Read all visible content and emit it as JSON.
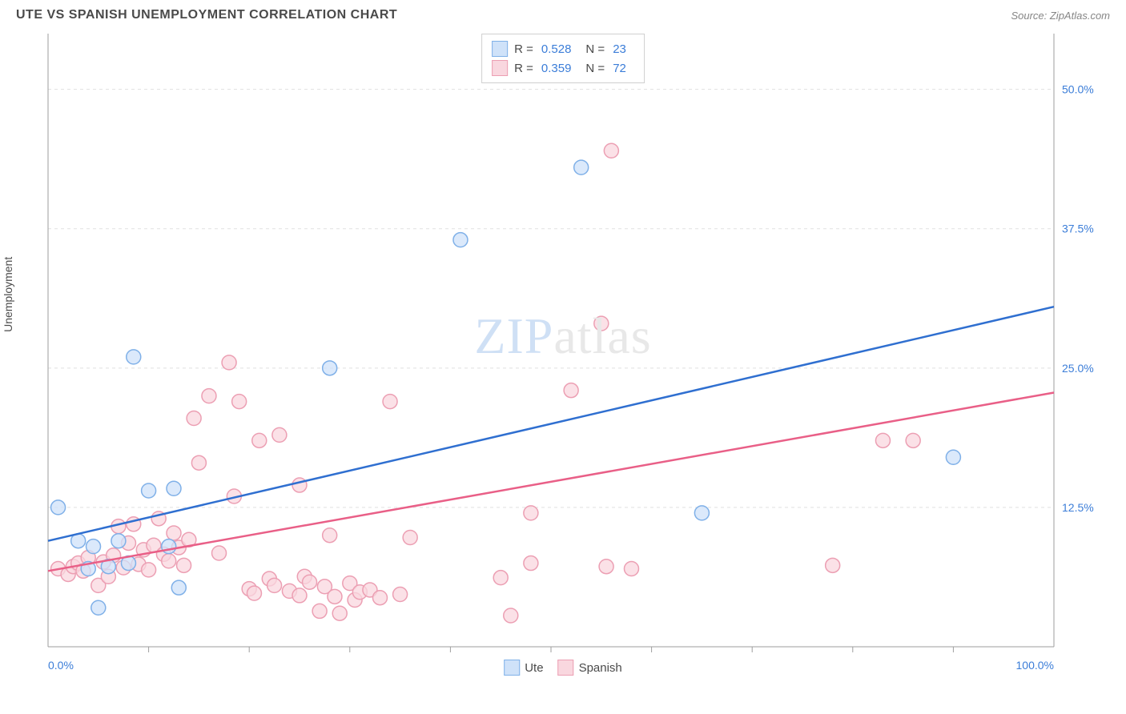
{
  "title": "UTE VS SPANISH UNEMPLOYMENT CORRELATION CHART",
  "source": "Source: ZipAtlas.com",
  "ylabel": "Unemployment",
  "watermark_left": "ZIP",
  "watermark_right": "atlas",
  "chart": {
    "type": "scatter",
    "xlim": [
      0,
      100
    ],
    "ylim": [
      0,
      55
    ],
    "xtick_left": "0.0%",
    "xtick_right": "100.0%",
    "xtick_minor": [
      10,
      20,
      30,
      40,
      50,
      60,
      70,
      80,
      90
    ],
    "yticks": [
      {
        "v": 12.5,
        "label": "12.5%"
      },
      {
        "v": 25.0,
        "label": "25.0%"
      },
      {
        "v": 37.5,
        "label": "37.5%"
      },
      {
        "v": 50.0,
        "label": "50.0%"
      }
    ],
    "background_color": "#ffffff",
    "grid_color": "#e0e0e0",
    "marker_radius": 9,
    "marker_stroke_width": 1.5,
    "line_width": 2.5,
    "series": [
      {
        "name": "Ute",
        "fill": "#cfe2f9",
        "stroke": "#7fb0e8",
        "line_color": "#2f6fd0",
        "R": "0.528",
        "N": "23",
        "regression": {
          "x1": 0,
          "y1": 9.5,
          "x2": 100,
          "y2": 30.5
        },
        "points": [
          {
            "x": 1,
            "y": 12.5
          },
          {
            "x": 3,
            "y": 9.5
          },
          {
            "x": 4,
            "y": 7
          },
          {
            "x": 4.5,
            "y": 9
          },
          {
            "x": 5,
            "y": 3.5
          },
          {
            "x": 6,
            "y": 7.2
          },
          {
            "x": 7,
            "y": 9.5
          },
          {
            "x": 8,
            "y": 7.5
          },
          {
            "x": 8.5,
            "y": 26
          },
          {
            "x": 10,
            "y": 14
          },
          {
            "x": 12,
            "y": 9
          },
          {
            "x": 12.5,
            "y": 14.2
          },
          {
            "x": 13,
            "y": 5.3
          },
          {
            "x": 28,
            "y": 25
          },
          {
            "x": 41,
            "y": 36.5
          },
          {
            "x": 53,
            "y": 43
          },
          {
            "x": 65,
            "y": 12
          },
          {
            "x": 90,
            "y": 17
          }
        ]
      },
      {
        "name": "Spanish",
        "fill": "#f9d7df",
        "stroke": "#ec9fb3",
        "line_color": "#e95f87",
        "R": "0.359",
        "N": "72",
        "regression": {
          "x1": 0,
          "y1": 6.8,
          "x2": 100,
          "y2": 22.8
        },
        "points": [
          {
            "x": 1,
            "y": 7
          },
          {
            "x": 2,
            "y": 6.5
          },
          {
            "x": 2.5,
            "y": 7.2
          },
          {
            "x": 3,
            "y": 7.5
          },
          {
            "x": 3.5,
            "y": 6.8
          },
          {
            "x": 4,
            "y": 8
          },
          {
            "x": 5,
            "y": 5.5
          },
          {
            "x": 5.5,
            "y": 7.6
          },
          {
            "x": 6,
            "y": 6.3
          },
          {
            "x": 6.5,
            "y": 8.2
          },
          {
            "x": 7,
            "y": 10.8
          },
          {
            "x": 7.5,
            "y": 7.1
          },
          {
            "x": 8,
            "y": 9.3
          },
          {
            "x": 8.5,
            "y": 11
          },
          {
            "x": 9,
            "y": 7.4
          },
          {
            "x": 9.5,
            "y": 8.7
          },
          {
            "x": 10,
            "y": 6.9
          },
          {
            "x": 10.5,
            "y": 9.1
          },
          {
            "x": 11,
            "y": 11.5
          },
          {
            "x": 11.5,
            "y": 8.3
          },
          {
            "x": 12,
            "y": 7.7
          },
          {
            "x": 12.5,
            "y": 10.2
          },
          {
            "x": 13,
            "y": 8.9
          },
          {
            "x": 13.5,
            "y": 7.3
          },
          {
            "x": 14,
            "y": 9.6
          },
          {
            "x": 14.5,
            "y": 20.5
          },
          {
            "x": 15,
            "y": 16.5
          },
          {
            "x": 16,
            "y": 22.5
          },
          {
            "x": 17,
            "y": 8.4
          },
          {
            "x": 18,
            "y": 25.5
          },
          {
            "x": 18.5,
            "y": 13.5
          },
          {
            "x": 19,
            "y": 22
          },
          {
            "x": 20,
            "y": 5.2
          },
          {
            "x": 20.5,
            "y": 4.8
          },
          {
            "x": 21,
            "y": 18.5
          },
          {
            "x": 22,
            "y": 6.1
          },
          {
            "x": 22.5,
            "y": 5.5
          },
          {
            "x": 23,
            "y": 19
          },
          {
            "x": 24,
            "y": 5.0
          },
          {
            "x": 25,
            "y": 14.5
          },
          {
            "x": 25,
            "y": 4.6
          },
          {
            "x": 25.5,
            "y": 6.3
          },
          {
            "x": 26,
            "y": 5.8
          },
          {
            "x": 27,
            "y": 3.2
          },
          {
            "x": 27.5,
            "y": 5.4
          },
          {
            "x": 28,
            "y": 10
          },
          {
            "x": 28.5,
            "y": 4.5
          },
          {
            "x": 29,
            "y": 3.0
          },
          {
            "x": 30,
            "y": 5.7
          },
          {
            "x": 30.5,
            "y": 4.2
          },
          {
            "x": 31,
            "y": 4.9
          },
          {
            "x": 32,
            "y": 5.1
          },
          {
            "x": 33,
            "y": 4.4
          },
          {
            "x": 34,
            "y": 22
          },
          {
            "x": 35,
            "y": 4.7
          },
          {
            "x": 36,
            "y": 9.8
          },
          {
            "x": 45,
            "y": 6.2
          },
          {
            "x": 46,
            "y": 2.8
          },
          {
            "x": 48,
            "y": 7.5
          },
          {
            "x": 48,
            "y": 12
          },
          {
            "x": 52,
            "y": 23
          },
          {
            "x": 55,
            "y": 29
          },
          {
            "x": 55.5,
            "y": 7.2
          },
          {
            "x": 56,
            "y": 44.5
          },
          {
            "x": 58,
            "y": 7
          },
          {
            "x": 78,
            "y": 7.3
          },
          {
            "x": 83,
            "y": 18.5
          },
          {
            "x": 86,
            "y": 18.5
          }
        ]
      }
    ]
  },
  "legend_bottom": [
    {
      "name": "Ute",
      "fill": "#cfe2f9",
      "stroke": "#7fb0e8"
    },
    {
      "name": "Spanish",
      "fill": "#f9d7df",
      "stroke": "#ec9fb3"
    }
  ]
}
